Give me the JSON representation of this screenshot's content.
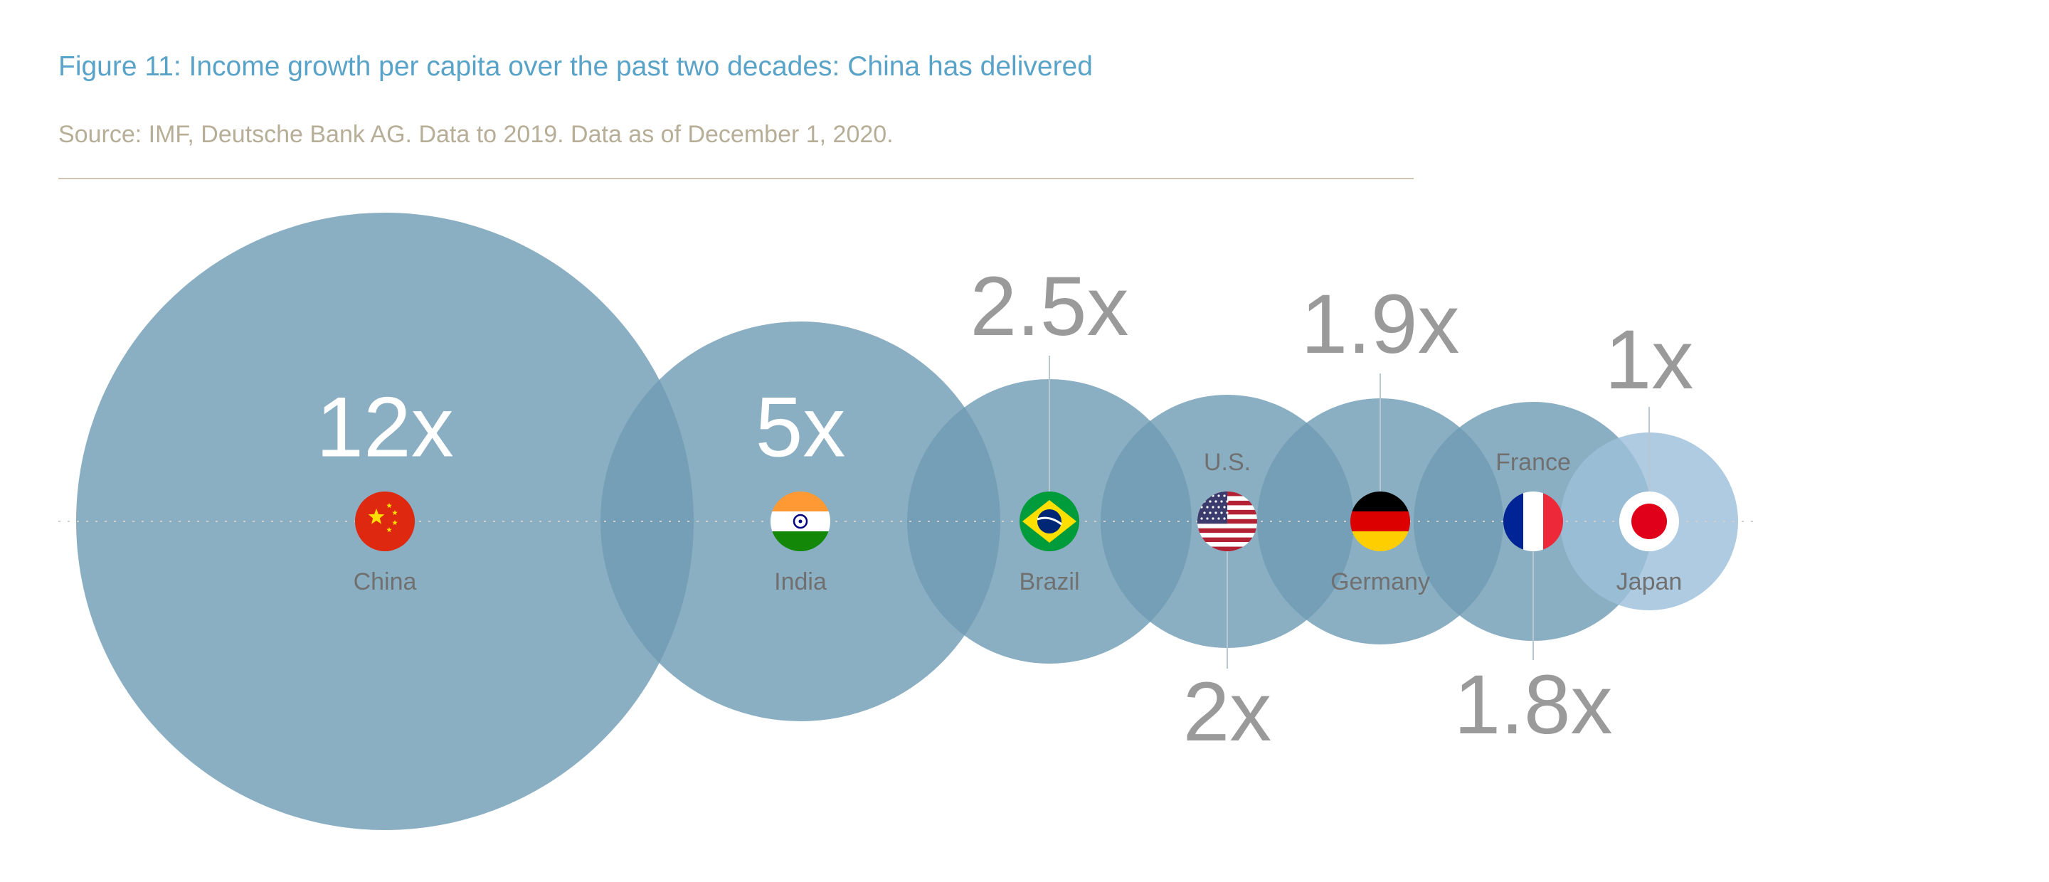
{
  "header": {
    "title": "Figure 11: Income growth per capita over the past two decades: China has delivered",
    "source": "Source: IMF, Deutsche Bank AG. Data to 2019. Data as of December 1, 2020."
  },
  "colors": {
    "bubble": "#6e9bb3",
    "bubble_japan": "#9dc0da",
    "value_inside": "#ffffff",
    "value_outside": "#9a9a9a",
    "label": "#707070",
    "title": "#5aa3c8",
    "source": "#b7ae98"
  },
  "chart_data": {
    "type": "bubble",
    "unit": "x",
    "countries": [
      {
        "name": "China",
        "value": 12,
        "value_label": "12x",
        "flag": "china-flag-icon"
      },
      {
        "name": "India",
        "value": 5,
        "value_label": "5x",
        "flag": "india-flag-icon"
      },
      {
        "name": "Brazil",
        "value": 2.5,
        "value_label": "2.5x",
        "flag": "brazil-flag-icon"
      },
      {
        "name": "U.S.",
        "value": 2,
        "value_label": "2x",
        "flag": "us-flag-icon"
      },
      {
        "name": "Germany",
        "value": 1.9,
        "value_label": "1.9x",
        "flag": "germany-flag-icon"
      },
      {
        "name": "France",
        "value": 1.8,
        "value_label": "1.8x",
        "flag": "france-flag-icon"
      },
      {
        "name": "Japan",
        "value": 1,
        "value_label": "1x",
        "flag": "japan-flag-icon"
      }
    ]
  }
}
